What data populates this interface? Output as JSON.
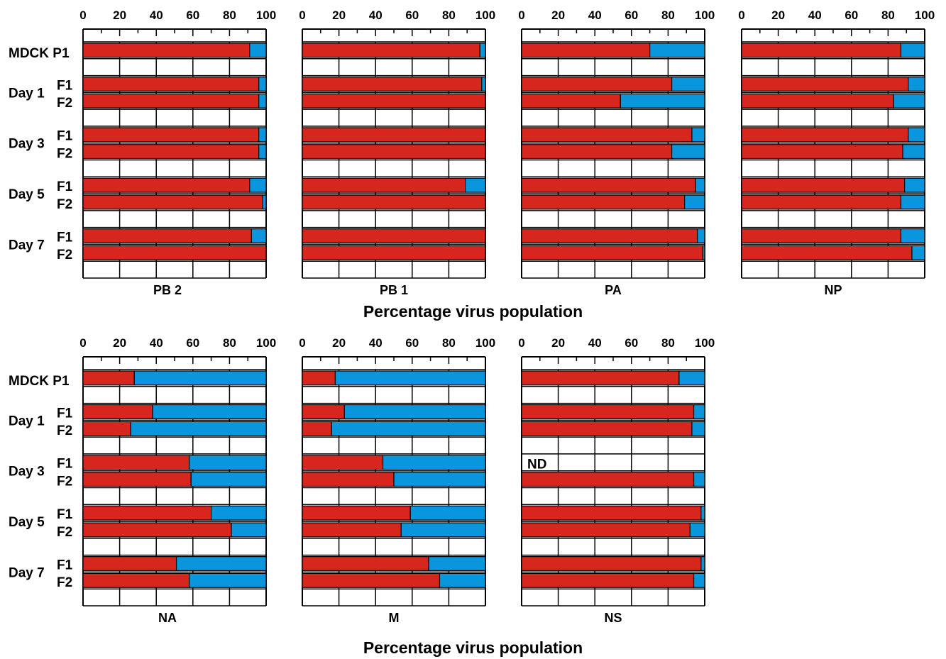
{
  "colors": {
    "red": "#d7261e",
    "blue": "#0a96dc",
    "stroke": "#000000"
  },
  "axis_ticks": [
    "0",
    "20",
    "40",
    "60",
    "80",
    "100"
  ],
  "row_labels": {
    "mdck": "MDCK P1",
    "days": [
      "Day 1",
      "Day 3",
      "Day 5",
      "Day 7"
    ],
    "f1": "F1",
    "f2": "F2"
  },
  "x_title": "Percentage  virus population",
  "nd_label": "ND",
  "chart_data": [
    {
      "type": "bar",
      "orientation": "horizontal",
      "stacked": true,
      "panel": "PB 2",
      "categories": [
        "MDCK P1",
        "Day 1 F1",
        "Day 1 F2",
        "Day 3 F1",
        "Day 3 F2",
        "Day 5 F1",
        "Day 5 F2",
        "Day 7 F1",
        "Day 7 F2"
      ],
      "series": [
        {
          "values": [
            91,
            96,
            96,
            96,
            96,
            91,
            98,
            92,
            100
          ]
        },
        {
          "values": [
            9,
            4,
            4,
            4,
            4,
            9,
            2,
            8,
            0
          ]
        }
      ],
      "xlim": [
        0,
        100
      ]
    },
    {
      "type": "bar",
      "orientation": "horizontal",
      "stacked": true,
      "panel": "PB 1",
      "categories": [
        "MDCK P1",
        "Day 1 F1",
        "Day 1 F2",
        "Day 3 F1",
        "Day 3 F2",
        "Day 5 F1",
        "Day 5 F2",
        "Day 7 F1",
        "Day 7 F2"
      ],
      "series": [
        {
          "values": [
            97,
            98,
            100,
            100,
            100,
            89,
            100,
            100,
            100
          ]
        },
        {
          "values": [
            3,
            2,
            0,
            0,
            0,
            11,
            0,
            0,
            0
          ]
        }
      ],
      "xlim": [
        0,
        100
      ]
    },
    {
      "type": "bar",
      "orientation": "horizontal",
      "stacked": true,
      "panel": "PA",
      "categories": [
        "MDCK P1",
        "Day 1 F1",
        "Day 1 F2",
        "Day 3 F1",
        "Day 3 F2",
        "Day 5 F1",
        "Day 5 F2",
        "Day 7 F1",
        "Day 7 F2"
      ],
      "series": [
        {
          "values": [
            70,
            82,
            54,
            93,
            82,
            95,
            89,
            96,
            99
          ]
        },
        {
          "values": [
            30,
            18,
            46,
            7,
            18,
            5,
            11,
            4,
            1
          ]
        }
      ],
      "xlim": [
        0,
        100
      ]
    },
    {
      "type": "bar",
      "orientation": "horizontal",
      "stacked": true,
      "panel": "NP",
      "categories": [
        "MDCK P1",
        "Day 1 F1",
        "Day 1 F2",
        "Day 3 F1",
        "Day 3 F2",
        "Day 5 F1",
        "Day 5 F2",
        "Day 7 F1",
        "Day 7 F2"
      ],
      "series": [
        {
          "values": [
            87,
            91,
            83,
            91,
            88,
            89,
            87,
            87,
            93
          ]
        },
        {
          "values": [
            13,
            9,
            17,
            9,
            12,
            11,
            13,
            13,
            7
          ]
        }
      ],
      "xlim": [
        0,
        100
      ]
    },
    {
      "type": "bar",
      "orientation": "horizontal",
      "stacked": true,
      "panel": "NA",
      "categories": [
        "MDCK P1",
        "Day 1 F1",
        "Day 1 F2",
        "Day 3 F1",
        "Day 3 F2",
        "Day 5 F1",
        "Day 5 F2",
        "Day 7 F1",
        "Day 7 F2"
      ],
      "series": [
        {
          "values": [
            28,
            38,
            26,
            58,
            59,
            70,
            81,
            51,
            58
          ]
        },
        {
          "values": [
            72,
            62,
            74,
            42,
            41,
            30,
            19,
            49,
            42
          ]
        }
      ],
      "xlim": [
        0,
        100
      ]
    },
    {
      "type": "bar",
      "orientation": "horizontal",
      "stacked": true,
      "panel": "M",
      "categories": [
        "MDCK P1",
        "Day 1 F1",
        "Day 1 F2",
        "Day 3 F1",
        "Day 3 F2",
        "Day 5 F1",
        "Day 5 F2",
        "Day 7 F1",
        "Day 7 F2"
      ],
      "series": [
        {
          "values": [
            18,
            23,
            16,
            44,
            50,
            59,
            54,
            69,
            75
          ]
        },
        {
          "values": [
            82,
            77,
            84,
            56,
            50,
            41,
            46,
            31,
            25
          ]
        }
      ],
      "xlim": [
        0,
        100
      ]
    },
    {
      "type": "bar",
      "orientation": "horizontal",
      "stacked": true,
      "panel": "NS",
      "categories": [
        "MDCK P1",
        "Day 1 F1",
        "Day 1 F2",
        "Day 3 F1",
        "Day 3 F2",
        "Day 5 F1",
        "Day 5 F2",
        "Day 7 F1",
        "Day 7 F2"
      ],
      "series": [
        {
          "values": [
            86,
            94,
            93,
            null,
            94,
            98,
            92,
            98,
            94
          ]
        },
        {
          "values": [
            14,
            6,
            7,
            null,
            6,
            2,
            8,
            2,
            6
          ]
        }
      ],
      "annotations": [
        {
          "category": "Day 3 F1",
          "text": "ND"
        }
      ],
      "xlim": [
        0,
        100
      ]
    }
  ]
}
